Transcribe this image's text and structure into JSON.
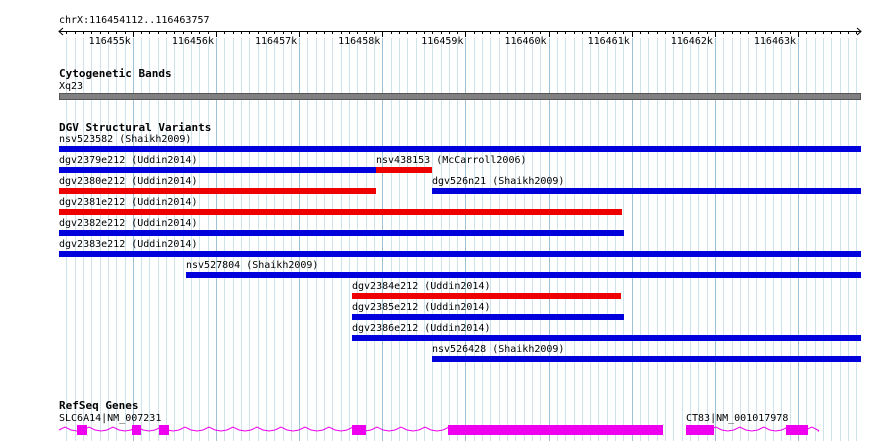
{
  "ruler": {
    "range_label": "chrX:116454112..116463757",
    "start": 116454112,
    "end": 116463757,
    "ticks": [
      "116455k",
      "116456k",
      "116457k",
      "116458k",
      "116459k",
      "116460k",
      "116461k",
      "116462k",
      "116463k"
    ]
  },
  "cytoband": {
    "title": "Cytogenetic Bands",
    "band_label": "Xq23",
    "color": "#808080"
  },
  "dgv": {
    "title": "DGV Structural Variants",
    "colors": {
      "gain": "#0000dd",
      "loss": "#ee0000"
    },
    "variants": [
      {
        "label": "nsv523582 (Shaikh2009)",
        "start": 116454112,
        "end": 116463757,
        "type": "gain"
      },
      {
        "label": "dgv2379e212 (Uddin2014)",
        "start": 116454112,
        "end": 116457920,
        "type": "gain"
      },
      {
        "label": "nsv438153 (McCarroll2006)",
        "start": 116457930,
        "end": 116458600,
        "type": "loss"
      },
      {
        "label": "dgv2380e212 (Uddin2014)",
        "start": 116454112,
        "end": 116457920,
        "type": "loss"
      },
      {
        "label": "dgv526n21 (Shaikh2009)",
        "start": 116458600,
        "end": 116463757,
        "type": "gain"
      },
      {
        "label": "dgv2381e212 (Uddin2014)",
        "start": 116454112,
        "end": 116460880,
        "type": "loss"
      },
      {
        "label": "dgv2382e212 (Uddin2014)",
        "start": 116454112,
        "end": 116460910,
        "type": "gain"
      },
      {
        "label": "dgv2383e212 (Uddin2014)",
        "start": 116454112,
        "end": 116463757,
        "type": "gain"
      },
      {
        "label": "nsv527804 (Shaikh2009)",
        "start": 116455640,
        "end": 116463757,
        "type": "gain"
      },
      {
        "label": "dgv2384e212 (Uddin2014)",
        "start": 116457640,
        "end": 116460880,
        "type": "loss"
      },
      {
        "label": "dgv2385e212 (Uddin2014)",
        "start": 116457640,
        "end": 116460910,
        "type": "gain"
      },
      {
        "label": "dgv2386e212 (Uddin2014)",
        "start": 116457640,
        "end": 116463757,
        "type": "gain"
      },
      {
        "label": "nsv526428 (Shaikh2009)",
        "start": 116458600,
        "end": 116463757,
        "type": "gain"
      }
    ]
  },
  "refseq": {
    "title": "RefSeq Genes",
    "color": "#ee00ee",
    "genes": [
      {
        "label": "SLC6A14|NM_007231",
        "start": 116454112,
        "end": 116461370,
        "exons": [
          [
            116454330,
            116454450
          ],
          [
            116454990,
            116455100
          ],
          [
            116455310,
            116455430
          ],
          [
            116457640,
            116457810
          ],
          [
            116458790,
            116461370
          ]
        ]
      },
      {
        "label": "CT83|NM_001017978",
        "start": 116461650,
        "end": 116463250,
        "exons": [
          [
            116461650,
            116461990
          ],
          [
            116462860,
            116463120
          ]
        ]
      }
    ]
  }
}
